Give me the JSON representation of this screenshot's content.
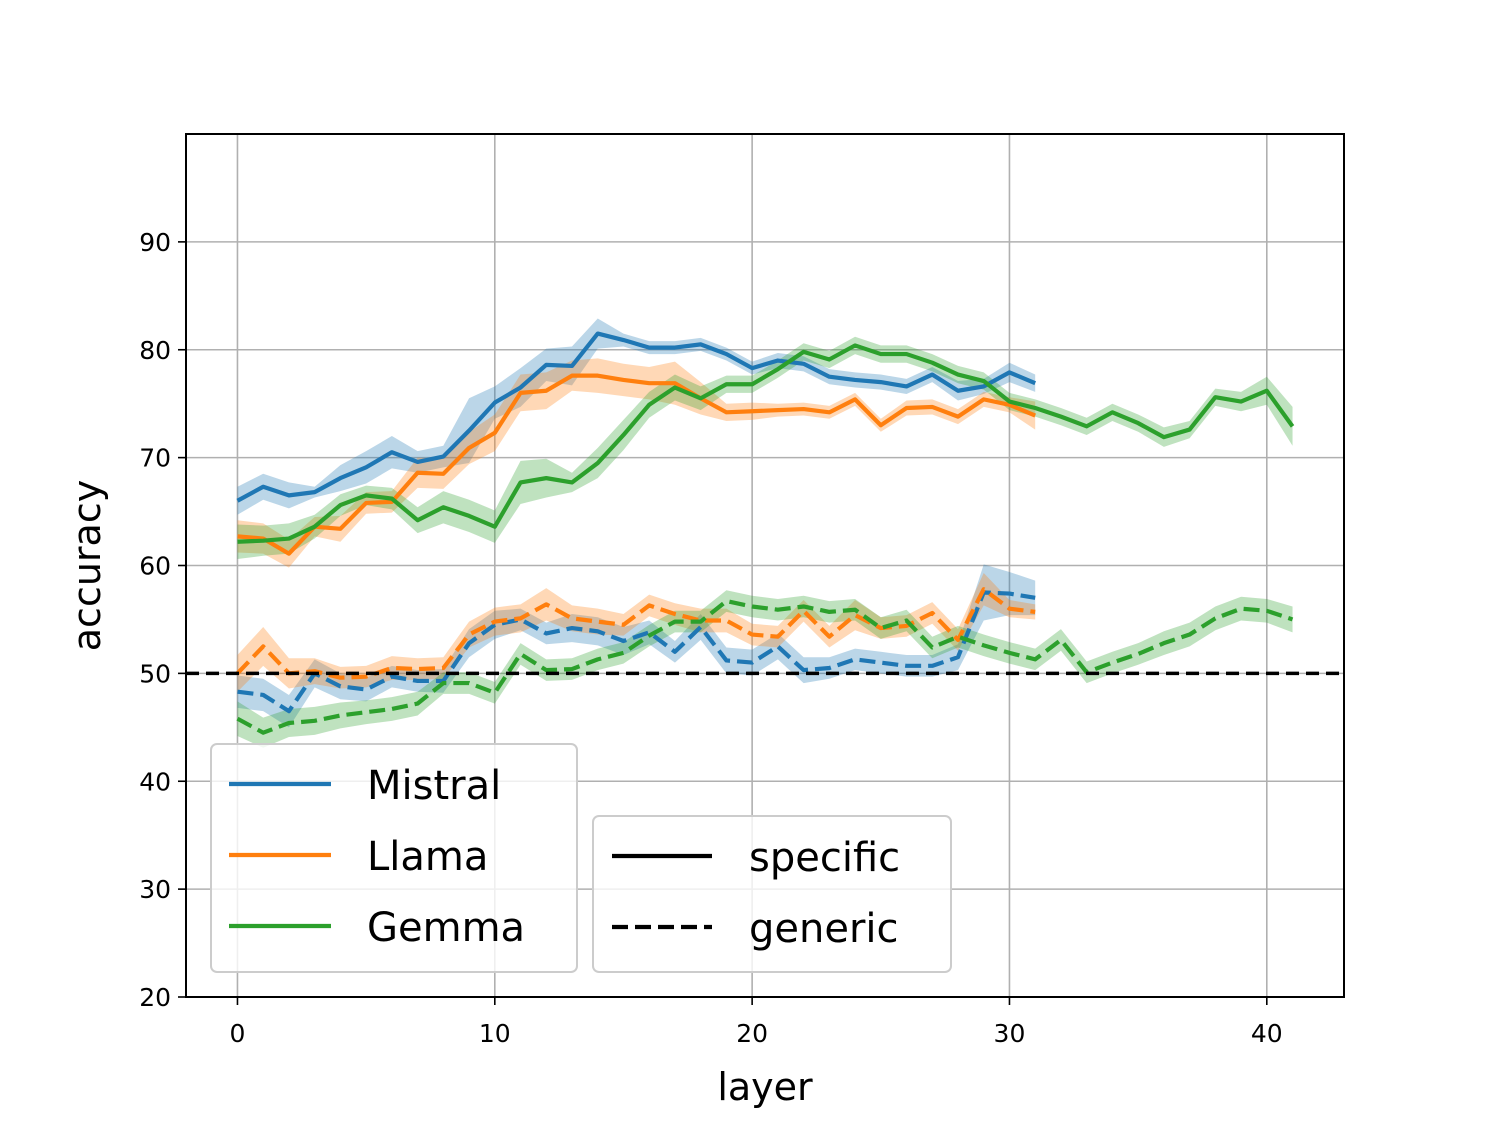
{
  "chart_data": {
    "type": "line",
    "xlabel": "layer",
    "ylabel": "accuracy",
    "xlim": [
      -2,
      43
    ],
    "ylim": [
      20,
      100
    ],
    "xticks": [
      0,
      10,
      20,
      30,
      40
    ],
    "yticks": [
      20,
      30,
      40,
      50,
      60,
      70,
      80,
      90
    ],
    "grid": true,
    "reference_line": {
      "y": 50,
      "style": "dashed",
      "color": "#000000"
    },
    "legend_models": {
      "placement": "lower-left",
      "entries": [
        {
          "label": "Mistral",
          "color": "#1f77b4"
        },
        {
          "label": "Llama",
          "color": "#ff7f0e"
        },
        {
          "label": "Gemma",
          "color": "#2ca02c"
        }
      ]
    },
    "legend_styles": {
      "placement": "lower-center",
      "entries": [
        {
          "label": "specific",
          "dash": "solid"
        },
        {
          "label": "generic",
          "dash": "dashed"
        }
      ]
    },
    "series": [
      {
        "model": "Mistral",
        "style": "specific",
        "color": "#1f77b4",
        "values": [
          66,
          67.3,
          66.5,
          66.8,
          68.1,
          69.1,
          70.5,
          69.6,
          70.1,
          72.5,
          75.1,
          76.5,
          78.6,
          78.5,
          81.5,
          80.9,
          80.2,
          80.2,
          80.5,
          79.6,
          78.3,
          79,
          78.7,
          77.5,
          77.2,
          77,
          76.6,
          77.7,
          76.2,
          76.6,
          77.9,
          76.9
        ],
        "band": [
          1.3,
          1.2,
          1.2,
          0.5,
          1.2,
          1.5,
          1.5,
          1,
          1,
          3,
          1.5,
          1.8,
          1.5,
          1.8,
          1.4,
          0.6,
          0.6,
          0.6,
          0.6,
          0.6,
          0.6,
          0.7,
          0.7,
          0.7,
          0.7,
          0.7,
          0.7,
          0.7,
          0.9,
          0.7,
          0.9,
          0.8
        ]
      },
      {
        "model": "Llama",
        "style": "specific",
        "color": "#ff7f0e",
        "values": [
          62.7,
          62.5,
          61.1,
          63.6,
          63.4,
          65.8,
          65.9,
          68.6,
          68.5,
          70.9,
          72.3,
          76,
          76.2,
          77.6,
          77.6,
          77.2,
          76.9,
          76.9,
          75.5,
          74.2,
          74.3,
          74.4,
          74.5,
          74.2,
          75.4,
          73,
          74.6,
          74.7,
          73.8,
          75.4,
          74.9,
          73.9
        ],
        "band": [
          1.5,
          1.4,
          1.3,
          0.9,
          1.2,
          1,
          1,
          1.4,
          1.4,
          1.5,
          1.7,
          1.7,
          1.7,
          1.4,
          1.6,
          1.5,
          1.5,
          2,
          1.5,
          0.8,
          0.8,
          0.6,
          0.6,
          0.6,
          0.6,
          0.6,
          0.7,
          0.7,
          0.7,
          0.7,
          0.7,
          1.3
        ]
      },
      {
        "model": "Gemma",
        "style": "specific",
        "color": "#2ca02c",
        "values": [
          62.2,
          62.3,
          62.5,
          63.6,
          65.6,
          66.5,
          66.2,
          64.2,
          65.4,
          64.6,
          63.6,
          67.7,
          68.1,
          67.7,
          69.5,
          72.1,
          74.9,
          76.5,
          75.5,
          76.8,
          76.8,
          78.2,
          79.8,
          79.1,
          80.4,
          79.6,
          79.6,
          78.8,
          77.7,
          77.1,
          75.2,
          74.6,
          73.8,
          72.9,
          74.2,
          73.2,
          71.9,
          72.6,
          75.6,
          75.2,
          76.2,
          72.9
        ],
        "band": [
          1.6,
          1.4,
          1.4,
          1.1,
          1,
          0.9,
          1,
          1.2,
          1.5,
          1.5,
          1.5,
          2,
          1.8,
          0.9,
          1.4,
          1.4,
          1.2,
          1.2,
          1.1,
          0.8,
          0.8,
          0.8,
          0.8,
          0.8,
          0.8,
          0.8,
          0.8,
          0.8,
          0.8,
          0.8,
          0.8,
          0.8,
          0.8,
          0.8,
          0.8,
          0.8,
          0.9,
          0.8,
          0.8,
          0.9,
          1.3,
          1.8
        ]
      },
      {
        "model": "Mistral",
        "style": "generic",
        "color": "#1f77b4",
        "values": [
          48.3,
          48,
          46.5,
          50,
          48.8,
          48.5,
          49.7,
          49.3,
          49.3,
          52.8,
          54.5,
          55,
          53.7,
          54.2,
          53.9,
          53,
          53.8,
          52,
          54.3,
          51.2,
          51,
          52.5,
          50.3,
          50.5,
          51.3,
          51,
          50.7,
          50.7,
          51.5,
          57.5,
          57.4,
          57
        ],
        "band": [
          1.5,
          1.5,
          1.5,
          1.3,
          1.2,
          1.1,
          1,
          1,
          1.1,
          1.3,
          1.3,
          1,
          1,
          1.3,
          1.3,
          1.3,
          1.1,
          1,
          1.2,
          1.2,
          1.2,
          1.2,
          1.2,
          1,
          1,
          1,
          1,
          1,
          1.2,
          2.6,
          2,
          1.6
        ]
      },
      {
        "model": "Llama",
        "style": "generic",
        "color": "#ff7f0e",
        "values": [
          50,
          52.5,
          50,
          50.2,
          49.6,
          49.7,
          50.5,
          50.4,
          50.5,
          53.6,
          54.8,
          55.1,
          56.4,
          55.1,
          54.8,
          54.5,
          56.3,
          55.5,
          54.9,
          54.9,
          53.6,
          53.4,
          55.8,
          53.4,
          55.4,
          54.2,
          54.4,
          55.6,
          53.1,
          57.8,
          56,
          55.7
        ],
        "band": [
          1.7,
          1.8,
          1.4,
          1.2,
          1,
          1,
          1.1,
          1,
          1,
          1.2,
          1.3,
          1.3,
          1.5,
          1.2,
          1.2,
          1,
          1,
          1,
          1.1,
          1.1,
          1,
          1,
          1,
          1,
          1.4,
          1,
          1,
          1,
          1,
          1.5,
          0.8,
          0.7
        ]
      },
      {
        "model": "Gemma",
        "style": "generic",
        "color": "#2ca02c",
        "values": [
          45.8,
          44.5,
          45.4,
          45.6,
          46.1,
          46.4,
          46.7,
          47.2,
          49.1,
          49.1,
          48.2,
          51.8,
          50.3,
          50.4,
          51.3,
          51.9,
          53.5,
          54.8,
          54.8,
          56.7,
          56.2,
          55.9,
          56.2,
          55.7,
          55.9,
          54.2,
          54.9,
          52.4,
          53.4,
          52.6,
          51.9,
          51.3,
          53.1,
          50.1,
          51,
          51.8,
          52.8,
          53.6,
          55.1,
          56,
          55.8,
          55
        ],
        "band": [
          1.6,
          1.4,
          1.3,
          1.3,
          1.2,
          1.1,
          1.1,
          1.1,
          1,
          1,
          1,
          1,
          1,
          1,
          1,
          1,
          1,
          1,
          1,
          1,
          1,
          1,
          1,
          1,
          1,
          1,
          1,
          1,
          1,
          1,
          1,
          1,
          1,
          1,
          1,
          1,
          1.1,
          1.1,
          1.1,
          1.1,
          1.1,
          1.2
        ]
      }
    ]
  }
}
